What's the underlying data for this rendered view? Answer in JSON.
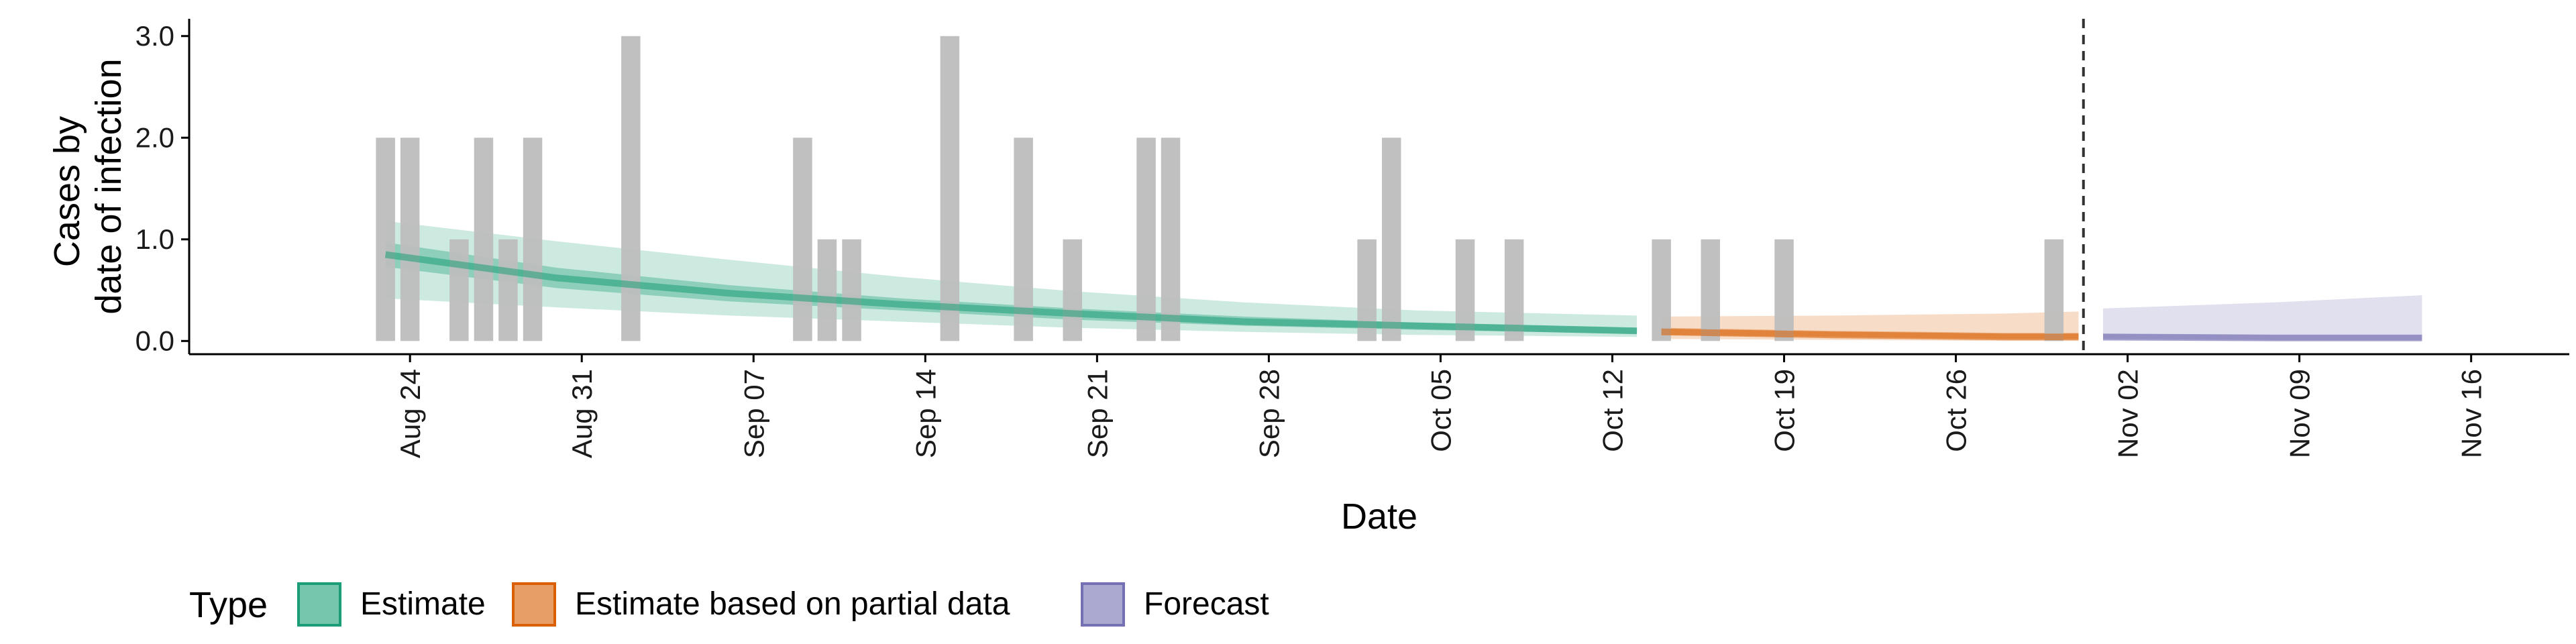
{
  "chart_data": {
    "type": "bar+area",
    "xlabel": "Date",
    "ylabel_lines": [
      "Cases by",
      "date of infection"
    ],
    "y_ticks": [
      "0.0",
      "1.0",
      "2.0",
      "3.0"
    ],
    "ylim": [
      -0.13,
      3.17
    ],
    "x_start_date": "2020-08-15",
    "x_end_date": "2020-11-20",
    "x_ticks": [
      {
        "date": "2020-08-24",
        "label": "Aug 24"
      },
      {
        "date": "2020-08-31",
        "label": "Aug 31"
      },
      {
        "date": "2020-09-07",
        "label": "Sep 07"
      },
      {
        "date": "2020-09-14",
        "label": "Sep 14"
      },
      {
        "date": "2020-09-21",
        "label": "Sep 21"
      },
      {
        "date": "2020-09-28",
        "label": "Sep 28"
      },
      {
        "date": "2020-10-05",
        "label": "Oct 05"
      },
      {
        "date": "2020-10-12",
        "label": "Oct 12"
      },
      {
        "date": "2020-10-19",
        "label": "Oct 19"
      },
      {
        "date": "2020-10-26",
        "label": "Oct 26"
      },
      {
        "date": "2020-11-02",
        "label": "Nov 02"
      },
      {
        "date": "2020-11-09",
        "label": "Nov 09"
      },
      {
        "date": "2020-11-16",
        "label": "Nov 16"
      }
    ],
    "bars": [
      {
        "date": "2020-08-23",
        "value": 2
      },
      {
        "date": "2020-08-24",
        "value": 2
      },
      {
        "date": "2020-08-26",
        "value": 1
      },
      {
        "date": "2020-08-27",
        "value": 2
      },
      {
        "date": "2020-08-28",
        "value": 1
      },
      {
        "date": "2020-08-29",
        "value": 2
      },
      {
        "date": "2020-09-02",
        "value": 3
      },
      {
        "date": "2020-09-09",
        "value": 2
      },
      {
        "date": "2020-09-10",
        "value": 1
      },
      {
        "date": "2020-09-11",
        "value": 1
      },
      {
        "date": "2020-09-15",
        "value": 3
      },
      {
        "date": "2020-09-18",
        "value": 2
      },
      {
        "date": "2020-09-20",
        "value": 1
      },
      {
        "date": "2020-09-23",
        "value": 2
      },
      {
        "date": "2020-09-24",
        "value": 2
      },
      {
        "date": "2020-10-02",
        "value": 1
      },
      {
        "date": "2020-10-03",
        "value": 2
      },
      {
        "date": "2020-10-06",
        "value": 1
      },
      {
        "date": "2020-10-08",
        "value": 1
      },
      {
        "date": "2020-10-14",
        "value": 1
      },
      {
        "date": "2020-10-16",
        "value": 1
      },
      {
        "date": "2020-10-19",
        "value": 1
      },
      {
        "date": "2020-10-30",
        "value": 1
      }
    ],
    "forecast_start_date": "2020-10-31",
    "series": [
      {
        "name": "Estimate",
        "color": "#1b9e77",
        "dates": [
          "2020-08-23",
          "2020-08-30",
          "2020-09-06",
          "2020-09-13",
          "2020-09-20",
          "2020-09-27",
          "2020-10-04",
          "2020-10-13"
        ],
        "median": [
          0.85,
          0.62,
          0.47,
          0.36,
          0.27,
          0.19,
          0.15,
          0.1
        ],
        "inner_lo": [
          0.73,
          0.52,
          0.39,
          0.3,
          0.21,
          0.15,
          0.11,
          0.07
        ],
        "inner_hi": [
          0.97,
          0.72,
          0.55,
          0.42,
          0.32,
          0.24,
          0.18,
          0.13
        ],
        "outer_lo": [
          0.42,
          0.33,
          0.25,
          0.19,
          0.13,
          0.09,
          0.06,
          0.04
        ],
        "outer_hi": [
          1.18,
          0.98,
          0.8,
          0.63,
          0.49,
          0.38,
          0.3,
          0.25
        ]
      },
      {
        "name": "Estimate based on partial data",
        "color": "#d95f02",
        "dates": [
          "2020-10-14",
          "2020-10-21",
          "2020-10-28",
          "2020-10-31"
        ],
        "median": [
          0.09,
          0.06,
          0.04,
          0.04
        ],
        "inner_lo": [
          0.06,
          0.04,
          0.02,
          0.02
        ],
        "inner_hi": [
          0.13,
          0.1,
          0.08,
          0.08
        ],
        "outer_lo": [
          0.02,
          0.01,
          0.0,
          0.0
        ],
        "outer_hi": [
          0.24,
          0.25,
          0.27,
          0.29
        ]
      },
      {
        "name": "Forecast",
        "color": "#7570b3",
        "dates": [
          "2020-11-01",
          "2020-11-08",
          "2020-11-14"
        ],
        "median": [
          0.04,
          0.03,
          0.03
        ],
        "inner_lo": [
          0.02,
          0.01,
          0.01
        ],
        "inner_hi": [
          0.07,
          0.06,
          0.06
        ],
        "outer_lo": [
          0.0,
          0.0,
          0.0
        ],
        "outer_hi": [
          0.32,
          0.38,
          0.45
        ]
      }
    ],
    "legend": {
      "title": "Type",
      "position": "bottom",
      "items": [
        "Estimate",
        "Estimate based on partial data",
        "Forecast"
      ]
    },
    "colors": {
      "bar": "#bdbdbd",
      "axis": "#000000",
      "vline": "#333333"
    }
  }
}
